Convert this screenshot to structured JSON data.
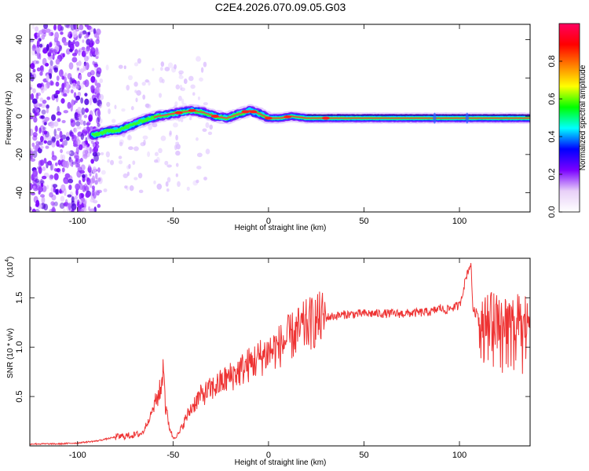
{
  "title": "C2E4.2026.070.09.05.G03",
  "chart_data": [
    {
      "type": "heatmap",
      "xlabel": "Height of straight line (km)",
      "ylabel": "Frequency (Hz)",
      "xlim": [
        -125,
        137
      ],
      "ylim": [
        -50,
        48
      ],
      "x_ticks": [
        -100,
        -50,
        0,
        50,
        100
      ],
      "x_tick_labels": [
        "-100",
        "-50",
        "0",
        "50",
        "100"
      ],
      "y_ticks": [
        -40,
        -20,
        0,
        20,
        40
      ],
      "y_tick_labels": [
        "-40",
        "-20",
        "0",
        "20",
        "40"
      ],
      "colorbar": {
        "label": "Normalized spectral amplitude",
        "range": [
          0.0,
          1.0
        ],
        "ticks": [
          0.0,
          0.2,
          0.4,
          0.6,
          0.8
        ],
        "tick_labels": [
          "0.0",
          "0.2",
          "0.4",
          "0.6",
          "0.8"
        ],
        "colormap": [
          "#ffffff",
          "#e8d0f8",
          "#7a00ff",
          "#0000ff",
          "#00ffff",
          "#00ff00",
          "#ffff00",
          "#ff8000",
          "#ff0000",
          "#ff0060"
        ]
      },
      "ridge": {
        "x": [
          -92,
          -85,
          -78,
          -70,
          -65,
          -58,
          -52,
          -46,
          -40,
          -34,
          -28,
          -22,
          -16,
          -10,
          -4,
          0,
          6,
          12,
          20,
          30,
          60,
          90,
          137
        ],
        "y": [
          -10,
          -8,
          -7,
          -4,
          -2,
          0,
          1,
          2,
          3,
          2,
          0,
          -1,
          1,
          3,
          1,
          -1,
          -1,
          0,
          -1,
          -1,
          -1,
          -1,
          -1
        ]
      },
      "scatter_region": {
        "x": [
          -125,
          -88
        ],
        "y": [
          -50,
          48
        ]
      }
    },
    {
      "type": "line",
      "xlabel": "Height of straight line (km)",
      "ylabel": "SNR (10 * v/v)",
      "y_multiplier": "(x10",
      "y_multiplier_exp": "4",
      "y_multiplier_close": ")",
      "xlim": [
        -125,
        137
      ],
      "ylim": [
        0,
        19000
      ],
      "x_ticks": [
        -100,
        -50,
        0,
        50,
        100
      ],
      "x_tick_labels": [
        "-100",
        "-50",
        "0",
        "50",
        "100"
      ],
      "y_ticks": [
        5000,
        10000,
        15000
      ],
      "y_tick_labels": [
        "0.5",
        "1.0",
        "1.5"
      ],
      "color": "#ee3333",
      "series": [
        {
          "x": [
            -125,
            -110,
            -100,
            -90,
            -80,
            -75,
            -70,
            -66,
            -62,
            -60,
            -58,
            -56,
            -55,
            -54,
            -52,
            -50,
            -47,
            -44,
            -40,
            -36,
            -32,
            -28,
            -24,
            -20,
            -16,
            -12,
            -8,
            -4,
            0,
            5,
            10,
            15,
            20,
            25,
            30,
            40,
            50,
            60,
            70,
            80,
            86,
            90,
            92,
            96,
            100,
            104,
            106,
            107,
            108,
            112,
            118,
            124,
            130,
            137
          ],
          "y": [
            200,
            200,
            300,
            500,
            900,
            1000,
            1100,
            1300,
            3000,
            4000,
            5000,
            6000,
            9000,
            4000,
            2000,
            800,
            1200,
            2500,
            4000,
            5000,
            5500,
            6000,
            6500,
            7000,
            7500,
            8000,
            8500,
            9000,
            9500,
            10000,
            10800,
            11500,
            12200,
            12700,
            13000,
            13300,
            13400,
            13400,
            13400,
            13500,
            13600,
            14000,
            13700,
            14000,
            14200,
            17500,
            18500,
            14000,
            13500,
            13400,
            13300,
            13300,
            13200,
            13200
          ]
        }
      ]
    }
  ]
}
